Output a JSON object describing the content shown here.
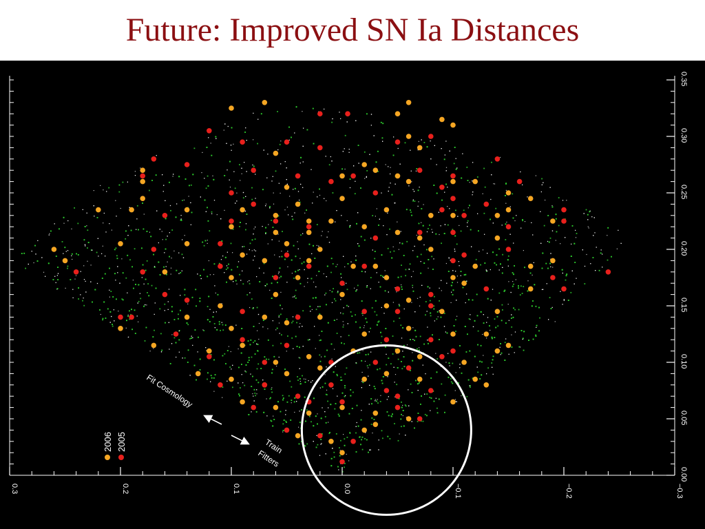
{
  "slide": {
    "title": "Future: Improved SN Ia Distances"
  },
  "chart_data": {
    "type": "scatter",
    "background": "black",
    "x_axis": {
      "reversed": true,
      "ticks": [
        0.3,
        0.2,
        0.1,
        0.0,
        -0.1,
        -0.2,
        -0.3
      ],
      "tick_labels": [
        "0.3",
        "0.2",
        "0.1",
        "0.0",
        "−0.1",
        "−0.2",
        "−0.3"
      ],
      "range": [
        0.3,
        -0.3
      ]
    },
    "y_axis": {
      "side": "right",
      "ticks": [
        0.0,
        0.05,
        0.1,
        0.15,
        0.2,
        0.25,
        0.3,
        0.35
      ],
      "tick_labels": [
        "0.00",
        "0.05",
        "0.10",
        "0.15",
        "0.20",
        "0.25",
        "0.30",
        "0.35"
      ],
      "range": [
        0.0,
        0.35
      ]
    },
    "survey_fan": {
      "apex": [
        0.0,
        0.0
      ],
      "left_edge_end": [
        0.3,
        0.19
      ],
      "right_edge_end": [
        -0.1,
        0.06
      ],
      "outer_arc_peak": [
        0.05,
        0.33
      ],
      "far_right_end": [
        -0.26,
        0.21
      ]
    },
    "series": [
      {
        "name": "2006",
        "color": "#f5a623",
        "points": [
          [
            0.1,
            0.325
          ],
          [
            0.07,
            0.33
          ],
          [
            -0.05,
            0.32
          ],
          [
            -0.06,
            0.33
          ],
          [
            -0.09,
            0.315
          ],
          [
            -0.1,
            0.31
          ],
          [
            -0.06,
            0.3
          ],
          [
            -0.07,
            0.29
          ],
          [
            0.18,
            0.27
          ],
          [
            0.18,
            0.26
          ],
          [
            0.06,
            0.285
          ],
          [
            0.0,
            0.265
          ],
          [
            -0.03,
            0.27
          ],
          [
            -0.02,
            0.275
          ],
          [
            -0.05,
            0.265
          ],
          [
            -0.06,
            0.26
          ],
          [
            -0.1,
            0.26
          ],
          [
            -0.12,
            0.26
          ],
          [
            -0.15,
            0.25
          ],
          [
            -0.17,
            0.245
          ],
          [
            0.18,
            0.245
          ],
          [
            0.05,
            0.255
          ],
          [
            0.04,
            0.24
          ],
          [
            0.0,
            0.245
          ],
          [
            -0.04,
            0.235
          ],
          [
            -0.08,
            0.23
          ],
          [
            -0.1,
            0.23
          ],
          [
            -0.14,
            0.23
          ],
          [
            0.22,
            0.235
          ],
          [
            0.19,
            0.235
          ],
          [
            0.14,
            0.235
          ],
          [
            0.09,
            0.235
          ],
          [
            0.06,
            0.23
          ],
          [
            0.03,
            0.225
          ],
          [
            0.01,
            0.225
          ],
          [
            -0.02,
            0.22
          ],
          [
            -0.05,
            0.215
          ],
          [
            -0.15,
            0.235
          ],
          [
            -0.19,
            0.225
          ],
          [
            0.1,
            0.22
          ],
          [
            0.06,
            0.215
          ],
          [
            0.03,
            0.215
          ],
          [
            0.02,
            0.2
          ],
          [
            -0.07,
            0.21
          ],
          [
            -0.14,
            0.21
          ],
          [
            0.26,
            0.2
          ],
          [
            0.25,
            0.19
          ],
          [
            0.2,
            0.205
          ],
          [
            0.14,
            0.205
          ],
          [
            0.09,
            0.195
          ],
          [
            0.07,
            0.19
          ],
          [
            0.05,
            0.205
          ],
          [
            0.03,
            0.19
          ],
          [
            -0.03,
            0.185
          ],
          [
            -0.08,
            0.2
          ],
          [
            -0.12,
            0.185
          ],
          [
            -0.17,
            0.185
          ],
          [
            -0.19,
            0.19
          ],
          [
            0.16,
            0.18
          ],
          [
            0.1,
            0.175
          ],
          [
            0.04,
            0.175
          ],
          [
            -0.01,
            0.185
          ],
          [
            -0.04,
            0.175
          ],
          [
            -0.1,
            0.175
          ],
          [
            -0.11,
            0.17
          ],
          [
            -0.17,
            0.165
          ],
          [
            0.11,
            0.15
          ],
          [
            0.07,
            0.14
          ],
          [
            0.06,
            0.16
          ],
          [
            0.0,
            0.16
          ],
          [
            -0.04,
            0.15
          ],
          [
            -0.06,
            0.155
          ],
          [
            -0.09,
            0.145
          ],
          [
            -0.14,
            0.145
          ],
          [
            0.2,
            0.13
          ],
          [
            0.14,
            0.14
          ],
          [
            0.1,
            0.13
          ],
          [
            0.05,
            0.135
          ],
          [
            0.02,
            0.14
          ],
          [
            -0.02,
            0.125
          ],
          [
            -0.06,
            0.13
          ],
          [
            -0.1,
            0.125
          ],
          [
            -0.13,
            0.125
          ],
          [
            -0.15,
            0.115
          ],
          [
            0.17,
            0.115
          ],
          [
            0.12,
            0.11
          ],
          [
            0.09,
            0.115
          ],
          [
            0.06,
            0.1
          ],
          [
            0.03,
            0.105
          ],
          [
            -0.01,
            0.11
          ],
          [
            -0.05,
            0.11
          ],
          [
            -0.07,
            0.105
          ],
          [
            -0.11,
            0.1
          ],
          [
            -0.14,
            0.11
          ],
          [
            0.13,
            0.09
          ],
          [
            0.1,
            0.085
          ],
          [
            0.07,
            0.08
          ],
          [
            0.05,
            0.09
          ],
          [
            0.02,
            0.095
          ],
          [
            -0.02,
            0.085
          ],
          [
            -0.04,
            0.09
          ],
          [
            -0.07,
            0.085
          ],
          [
            -0.12,
            0.085
          ],
          [
            -0.13,
            0.08
          ],
          [
            0.09,
            0.065
          ],
          [
            0.06,
            0.06
          ],
          [
            0.03,
            0.055
          ],
          [
            0.0,
            0.06
          ],
          [
            -0.03,
            0.055
          ],
          [
            -0.06,
            0.05
          ],
          [
            -0.1,
            0.065
          ],
          [
            0.04,
            0.035
          ],
          [
            0.01,
            0.03
          ],
          [
            -0.02,
            0.04
          ],
          [
            -0.03,
            0.045
          ],
          [
            0.0,
            0.02
          ]
        ]
      },
      {
        "name": "2005",
        "color": "#e8201c",
        "points": [
          [
            0.02,
            0.32
          ],
          [
            -0.005,
            0.32
          ],
          [
            0.12,
            0.305
          ],
          [
            0.09,
            0.295
          ],
          [
            0.05,
            0.295
          ],
          [
            0.02,
            0.29
          ],
          [
            -0.05,
            0.295
          ],
          [
            -0.08,
            0.3
          ],
          [
            -0.14,
            0.28
          ],
          [
            0.17,
            0.28
          ],
          [
            0.14,
            0.275
          ],
          [
            0.08,
            0.27
          ],
          [
            0.04,
            0.265
          ],
          [
            0.01,
            0.26
          ],
          [
            -0.01,
            0.265
          ],
          [
            -0.07,
            0.27
          ],
          [
            -0.09,
            0.255
          ],
          [
            -0.1,
            0.265
          ],
          [
            -0.16,
            0.26
          ],
          [
            0.18,
            0.265
          ],
          [
            0.1,
            0.25
          ],
          [
            0.08,
            0.24
          ],
          [
            -0.03,
            0.25
          ],
          [
            -0.1,
            0.245
          ],
          [
            -0.13,
            0.24
          ],
          [
            0.16,
            0.23
          ],
          [
            0.1,
            0.225
          ],
          [
            0.06,
            0.225
          ],
          [
            0.03,
            0.22
          ],
          [
            -0.09,
            0.235
          ],
          [
            -0.11,
            0.23
          ],
          [
            -0.15,
            0.22
          ],
          [
            -0.2,
            0.235
          ],
          [
            -0.2,
            0.225
          ],
          [
            0.17,
            0.2
          ],
          [
            0.11,
            0.205
          ],
          [
            0.05,
            0.195
          ],
          [
            -0.03,
            0.21
          ],
          [
            -0.07,
            0.215
          ],
          [
            -0.1,
            0.215
          ],
          [
            -0.15,
            0.2
          ],
          [
            0.24,
            0.18
          ],
          [
            0.18,
            0.18
          ],
          [
            0.11,
            0.185
          ],
          [
            0.03,
            0.185
          ],
          [
            -0.02,
            0.185
          ],
          [
            -0.1,
            0.19
          ],
          [
            -0.11,
            0.195
          ],
          [
            -0.19,
            0.175
          ],
          [
            0.16,
            0.16
          ],
          [
            0.06,
            0.175
          ],
          [
            0.0,
            0.17
          ],
          [
            -0.05,
            0.165
          ],
          [
            -0.08,
            0.16
          ],
          [
            -0.13,
            0.165
          ],
          [
            -0.24,
            0.18
          ],
          [
            -0.2,
            0.165
          ],
          [
            0.19,
            0.14
          ],
          [
            0.2,
            0.14
          ],
          [
            0.14,
            0.155
          ],
          [
            0.09,
            0.145
          ],
          [
            0.04,
            0.14
          ],
          [
            -0.02,
            0.145
          ],
          [
            -0.05,
            0.145
          ],
          [
            -0.08,
            0.15
          ],
          [
            0.15,
            0.125
          ],
          [
            0.09,
            0.12
          ],
          [
            0.05,
            0.115
          ],
          [
            -0.04,
            0.12
          ],
          [
            -0.08,
            0.12
          ],
          [
            -0.1,
            0.11
          ],
          [
            0.12,
            0.105
          ],
          [
            0.07,
            0.1
          ],
          [
            0.01,
            0.1
          ],
          [
            -0.03,
            0.1
          ],
          [
            -0.06,
            0.095
          ],
          [
            -0.09,
            0.105
          ],
          [
            0.11,
            0.08
          ],
          [
            0.07,
            0.08
          ],
          [
            0.04,
            0.07
          ],
          [
            0.01,
            0.08
          ],
          [
            -0.04,
            0.075
          ],
          [
            -0.05,
            0.07
          ],
          [
            -0.08,
            0.075
          ],
          [
            0.08,
            0.06
          ],
          [
            0.03,
            0.065
          ],
          [
            0.0,
            0.065
          ],
          [
            -0.05,
            0.06
          ],
          [
            -0.07,
            0.05
          ],
          [
            0.05,
            0.04
          ],
          [
            0.02,
            0.035
          ],
          [
            -0.01,
            0.03
          ],
          [
            0.0,
            0.012
          ]
        ]
      }
    ],
    "annotations": {
      "fit_cosmology": "Fit Cosmology",
      "train_fitters": "Train\nFitters"
    },
    "highlight_circle": {
      "center": [
        -0.04,
        0.04
      ],
      "radius": 0.075,
      "color": "#ffffff"
    },
    "legend": {
      "position": "bottom-left",
      "rotated": true,
      "items": [
        {
          "label": "2006",
          "color": "#f5a623"
        },
        {
          "label": "2005",
          "color": "#e8201c"
        }
      ]
    },
    "galaxy_colors": [
      "#ffffff",
      "#2ecc2e"
    ]
  }
}
